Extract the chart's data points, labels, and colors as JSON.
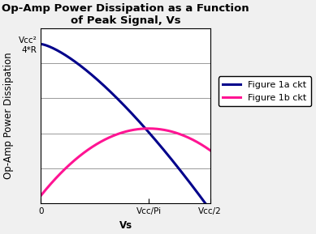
{
  "title_line1": "Op-Amp Power Dissipation as a Function",
  "title_line2": "of Peak Signal, Vs",
  "xlabel": "Vs",
  "ylabel": "Op-Amp Power Dissipation",
  "xtick_labels": [
    "0",
    "Vcc/Pi",
    "Vcc/2"
  ],
  "ytick_label_top": "Vcc²",
  "ytick_label_bot": "4*R",
  "legend_labels": [
    "Figure 1a ckt",
    "Figure 1b ckt"
  ],
  "color_1a": "#00008B",
  "color_1b": "#FF1493",
  "bg_color": "#f0f0f0",
  "plot_bg": "#ffffff",
  "title_fontsize": 9.5,
  "axis_label_fontsize": 8.5,
  "tick_fontsize": 7.5,
  "legend_fontsize": 8,
  "grid_color": "#999999",
  "n_hgrid": 5,
  "linewidth": 2.2
}
